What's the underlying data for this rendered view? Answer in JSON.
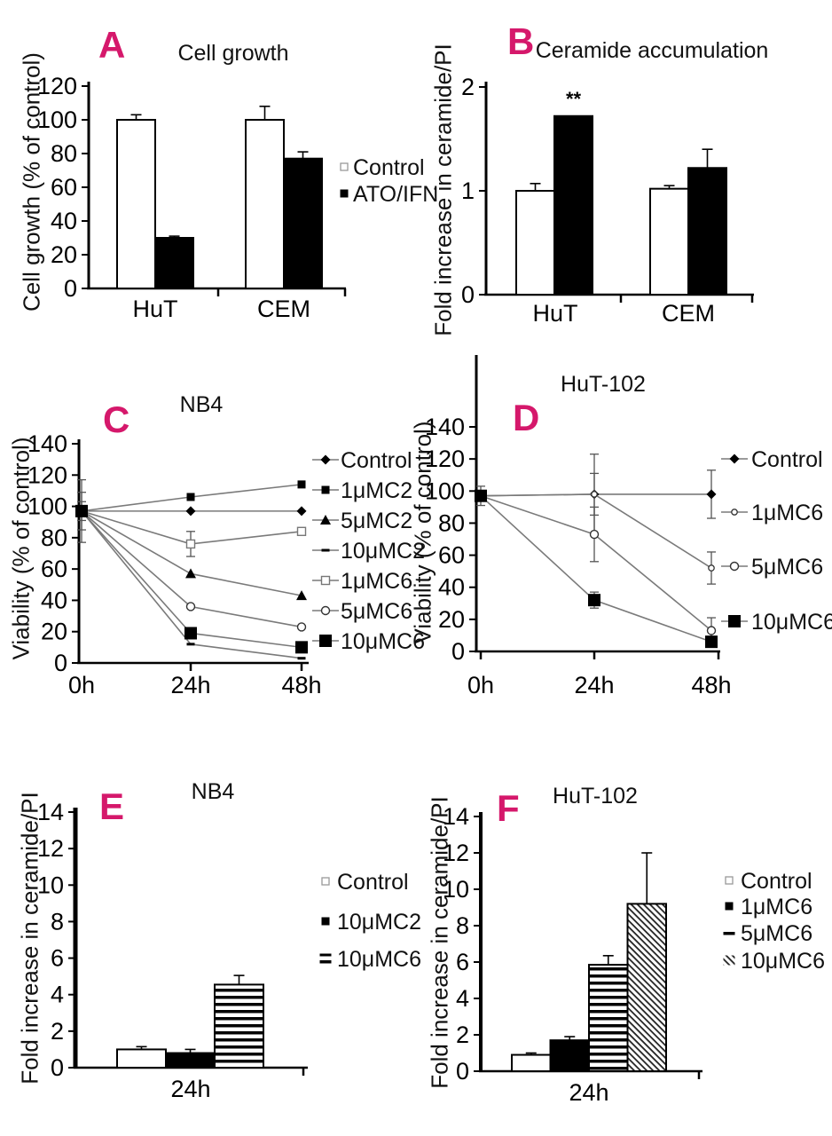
{
  "figure": {
    "accent_color": "#D5186B",
    "line_color": "#7a7a7a",
    "background_color": "#ffffff"
  },
  "chart_data": [
    {
      "panel": "A",
      "type": "bar",
      "title": "Cell growth",
      "ylabel": "Cell growth (% of control)",
      "ylim": [
        0,
        120
      ],
      "ytick_step": 20,
      "categories": [
        "HuT",
        "CEM"
      ],
      "series": [
        {
          "name": "Control",
          "fill": "white",
          "legend_marker": "open-square-small",
          "values": [
            100,
            100
          ],
          "errors": [
            3,
            8
          ]
        },
        {
          "name": "ATO/IFN",
          "fill": "black",
          "legend_marker": "filled-square-small",
          "values": [
            30,
            77
          ],
          "errors": [
            1,
            4
          ]
        }
      ]
    },
    {
      "panel": "B",
      "type": "bar",
      "title": "Ceramide accumulation",
      "ylabel": "Fold increase in ceramide/PI",
      "ylim": [
        0,
        2
      ],
      "ytick_step": 1,
      "categories": [
        "HuT",
        "CEM"
      ],
      "series": [
        {
          "name": "Control",
          "fill": "white",
          "legend_marker": "open-square-small",
          "values": [
            1.0,
            1.02
          ],
          "errors": [
            0.07,
            0.03
          ]
        },
        {
          "name": "ATO/IFN",
          "fill": "black",
          "legend_marker": "filled-square-small",
          "values": [
            1.72,
            1.22
          ],
          "errors": [
            0,
            0.18
          ]
        }
      ],
      "annotation": {
        "text": "**",
        "target": {
          "category": "HuT",
          "series": "ATO/IFN"
        }
      }
    },
    {
      "panel": "C",
      "type": "line",
      "title": "NB4",
      "ylabel": "Viability (% of control)",
      "ylim": [
        0,
        140
      ],
      "ytick_step": 20,
      "x_labels": [
        "0h",
        "24h",
        "48h"
      ],
      "series": [
        {
          "name": "Control",
          "marker": "filled-diamond",
          "values": [
            97,
            97,
            97
          ],
          "errors": [
            12,
            0,
            0
          ]
        },
        {
          "name": "1μMC2",
          "marker": "filled-square-small",
          "values": [
            97,
            106,
            114
          ],
          "errors": [
            20,
            0,
            0
          ]
        },
        {
          "name": "5μMC2",
          "marker": "filled-triangle",
          "values": [
            97,
            57,
            43
          ],
          "errors": [
            0,
            0,
            0
          ]
        },
        {
          "name": "10μMC2",
          "marker": "dash",
          "values": [
            97,
            12,
            3
          ],
          "errors": [
            0,
            0,
            0
          ]
        },
        {
          "name": "1μMC6",
          "marker": "open-square",
          "values": [
            97,
            76,
            84
          ],
          "errors": [
            0,
            8,
            0
          ]
        },
        {
          "name": "5μMC6",
          "marker": "open-circle",
          "values": [
            97,
            36,
            23
          ],
          "errors": [
            0,
            0,
            0
          ]
        },
        {
          "name": "10μMC6",
          "marker": "filled-square-large",
          "values": [
            97,
            19,
            10
          ],
          "errors": [
            6,
            0,
            0
          ]
        }
      ]
    },
    {
      "panel": "D",
      "type": "line",
      "title": "HuT-102",
      "ylabel": "Viability (% of control)",
      "ylim": [
        0,
        140
      ],
      "ytick_step": 20,
      "x_labels": [
        "0h",
        "24h",
        "48h"
      ],
      "series": [
        {
          "name": "Control",
          "marker": "filled-diamond",
          "values": [
            97,
            98,
            98
          ],
          "errors": [
            0,
            13,
            15
          ]
        },
        {
          "name": "1μMC6",
          "marker": "open-circle-small",
          "values": [
            97,
            98,
            52
          ],
          "errors": [
            0,
            25,
            10
          ]
        },
        {
          "name": "5μMC6",
          "marker": "open-circle",
          "values": [
            97,
            73,
            13
          ],
          "errors": [
            0,
            17,
            8
          ]
        },
        {
          "name": "10μMC6",
          "marker": "filled-square-large",
          "values": [
            97,
            32,
            6
          ],
          "errors": [
            6,
            5,
            0
          ]
        }
      ]
    },
    {
      "panel": "E",
      "type": "bar",
      "title": "NB4",
      "ylabel": "Fold increase in ceramide/PI",
      "ylim": [
        0,
        14
      ],
      "ytick_step": 2,
      "categories": [
        "24h"
      ],
      "series": [
        {
          "name": "Control",
          "fill": "white",
          "legend_marker": "open-square-small",
          "values": [
            1.0
          ],
          "errors": [
            0.15
          ]
        },
        {
          "name": "10μMC2",
          "fill": "black",
          "legend_marker": "filled-square-small",
          "values": [
            0.8
          ],
          "errors": [
            0.2
          ]
        },
        {
          "name": "10μMC6",
          "fill": "hstripe",
          "legend_marker": "hstripe-square",
          "values": [
            4.55
          ],
          "errors": [
            0.5
          ]
        }
      ]
    },
    {
      "panel": "F",
      "type": "bar",
      "title": "HuT-102",
      "ylabel": "Fold increase in ceramide/PI",
      "ylim": [
        0,
        14
      ],
      "ytick_step": 2,
      "categories": [
        "24h"
      ],
      "series": [
        {
          "name": "Control",
          "fill": "white",
          "legend_marker": "open-square-small",
          "values": [
            0.9
          ],
          "errors": [
            0.1
          ]
        },
        {
          "name": "1μMC6",
          "fill": "black",
          "legend_marker": "filled-square-small",
          "values": [
            1.7
          ],
          "errors": [
            0.2
          ]
        },
        {
          "name": "5μMC6",
          "fill": "hstripe",
          "legend_marker": "hstripe-square",
          "values": [
            5.85
          ],
          "errors": [
            0.5
          ]
        },
        {
          "name": "10μMC6",
          "fill": "dstripe",
          "legend_marker": "dstripe-square",
          "values": [
            9.2
          ],
          "errors": [
            2.8
          ]
        }
      ]
    }
  ]
}
